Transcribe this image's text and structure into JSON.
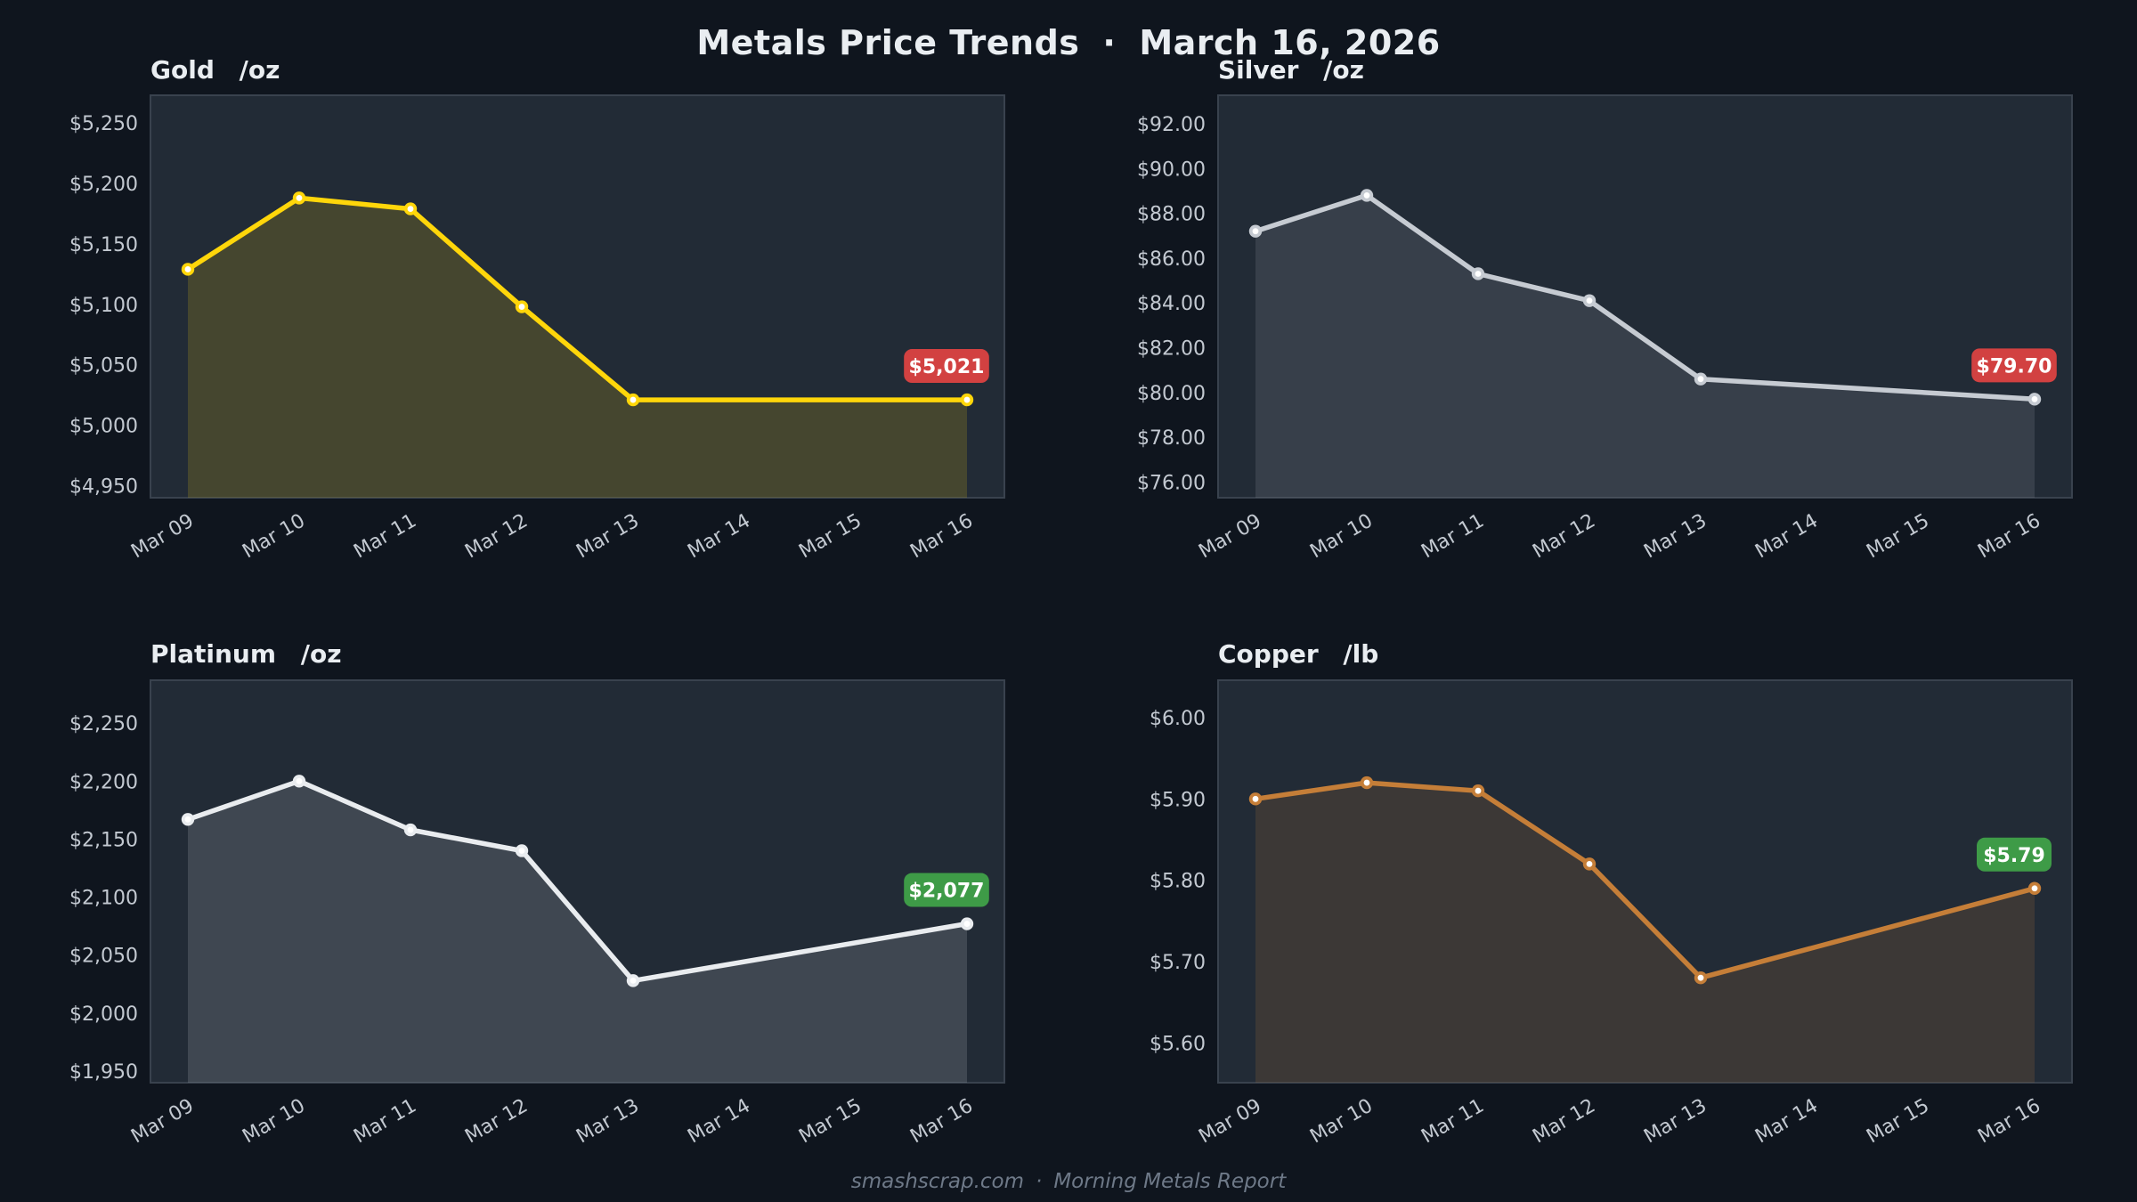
{
  "page": {
    "colors": {
      "background": "#0f151e",
      "panel_bg": "#222b36",
      "panel_border": "#39424e",
      "tick_label": "#c3c9d1",
      "title_text": "#e9edf1",
      "footer_text": "#6e7988",
      "badge_text": "#ffffff",
      "marker_center": "#ffffff"
    }
  },
  "header": {
    "title_left": "Metals Price Trends",
    "separator": "·",
    "title_right": "March 16, 2026"
  },
  "footer": {
    "site": "smashscrap.com",
    "separator": "·",
    "report": "Morning Metals Report"
  },
  "chart_data": [
    {
      "id": "gold",
      "type": "area",
      "title": "Gold",
      "unit": "/oz",
      "x_labels": [
        "Mar 09",
        "Mar 10",
        "Mar 11",
        "Mar 12",
        "Mar 13",
        "Mar 14",
        "Mar 15",
        "Mar 16"
      ],
      "points": [
        {
          "i": 0,
          "date": "Mar 09",
          "value": 5129
        },
        {
          "i": 1,
          "date": "Mar 10",
          "value": 5188
        },
        {
          "i": 2,
          "date": "Mar 11",
          "value": 5179
        },
        {
          "i": 3,
          "date": "Mar 12",
          "value": 5098
        },
        {
          "i": 4,
          "date": "Mar 13",
          "value": 5021
        },
        {
          "i": 7,
          "date": "Mar 16",
          "value": 5021
        }
      ],
      "note_weekend_gap": "no data Mar 14-15",
      "y_ticks": [
        {
          "value": 4950,
          "label": "$4,950"
        },
        {
          "value": 5000,
          "label": "$5,000"
        },
        {
          "value": 5050,
          "label": "$5,050"
        },
        {
          "value": 5100,
          "label": "$5,100"
        },
        {
          "value": 5150,
          "label": "$5,150"
        },
        {
          "value": 5200,
          "label": "$5,200"
        },
        {
          "value": 5250,
          "label": "$5,250"
        }
      ],
      "ylim": [
        4940,
        5273
      ],
      "line_color": "#ffd60a",
      "fill_color": "rgba(255,214,10,0.16)",
      "badge": {
        "label": "$5,021",
        "color": "#d24141"
      }
    },
    {
      "id": "silver",
      "type": "area",
      "title": "Silver",
      "unit": "/oz",
      "x_labels": [
        "Mar 09",
        "Mar 10",
        "Mar 11",
        "Mar 12",
        "Mar 13",
        "Mar 14",
        "Mar 15",
        "Mar 16"
      ],
      "points": [
        {
          "i": 0,
          "date": "Mar 09",
          "value": 87.2
        },
        {
          "i": 1,
          "date": "Mar 10",
          "value": 88.8
        },
        {
          "i": 2,
          "date": "Mar 11",
          "value": 85.3
        },
        {
          "i": 3,
          "date": "Mar 12",
          "value": 84.1
        },
        {
          "i": 4,
          "date": "Mar 13",
          "value": 80.6
        },
        {
          "i": 7,
          "date": "Mar 16",
          "value": 79.7
        }
      ],
      "note_weekend_gap": "no data Mar 14-15",
      "y_ticks": [
        {
          "value": 76,
          "label": "$76.00"
        },
        {
          "value": 78,
          "label": "$78.00"
        },
        {
          "value": 80,
          "label": "$80.00"
        },
        {
          "value": 82,
          "label": "$82.00"
        },
        {
          "value": 84,
          "label": "$84.00"
        },
        {
          "value": 86,
          "label": "$86.00"
        },
        {
          "value": 88,
          "label": "$88.00"
        },
        {
          "value": 90,
          "label": "$90.00"
        },
        {
          "value": 92,
          "label": "$92.00"
        }
      ],
      "ylim": [
        75.3,
        93.27
      ],
      "line_color": "#c6cbd2",
      "fill_color": "rgba(198,203,210,0.13)",
      "badge": {
        "label": "$79.70",
        "color": "#d24141"
      }
    },
    {
      "id": "platinum",
      "type": "area",
      "title": "Platinum",
      "unit": "/oz",
      "x_labels": [
        "Mar 09",
        "Mar 10",
        "Mar 11",
        "Mar 12",
        "Mar 13",
        "Mar 14",
        "Mar 15",
        "Mar 16"
      ],
      "points": [
        {
          "i": 0,
          "date": "Mar 09",
          "value": 2167
        },
        {
          "i": 1,
          "date": "Mar 10",
          "value": 2200
        },
        {
          "i": 2,
          "date": "Mar 11",
          "value": 2158
        },
        {
          "i": 3,
          "date": "Mar 12",
          "value": 2140
        },
        {
          "i": 4,
          "date": "Mar 13",
          "value": 2028
        },
        {
          "i": 7,
          "date": "Mar 16",
          "value": 2077
        }
      ],
      "note_weekend_gap": "no data Mar 14-15",
      "y_ticks": [
        {
          "value": 1950,
          "label": "$1,950"
        },
        {
          "value": 2000,
          "label": "$2,000"
        },
        {
          "value": 2050,
          "label": "$2,050"
        },
        {
          "value": 2100,
          "label": "$2,100"
        },
        {
          "value": 2150,
          "label": "$2,150"
        },
        {
          "value": 2200,
          "label": "$2,200"
        },
        {
          "value": 2250,
          "label": "$2,250"
        }
      ],
      "ylim": [
        1940,
        2287
      ],
      "line_color": "#e9ecef",
      "fill_color": "rgba(233,236,239,0.15)",
      "badge": {
        "label": "$2,077",
        "color": "#3e9b47"
      }
    },
    {
      "id": "copper",
      "type": "area",
      "title": "Copper",
      "unit": "/lb",
      "x_labels": [
        "Mar 09",
        "Mar 10",
        "Mar 11",
        "Mar 12",
        "Mar 13",
        "Mar 14",
        "Mar 15",
        "Mar 16"
      ],
      "points": [
        {
          "i": 0,
          "date": "Mar 09",
          "value": 5.9
        },
        {
          "i": 1,
          "date": "Mar 10",
          "value": 5.92
        },
        {
          "i": 2,
          "date": "Mar 11",
          "value": 5.91
        },
        {
          "i": 3,
          "date": "Mar 12",
          "value": 5.82
        },
        {
          "i": 4,
          "date": "Mar 13",
          "value": 5.68
        },
        {
          "i": 7,
          "date": "Mar 16",
          "value": 5.79
        }
      ],
      "note_weekend_gap": "no data Mar 14-15",
      "y_ticks": [
        {
          "value": 5.6,
          "label": "$5.60"
        },
        {
          "value": 5.7,
          "label": "$5.70"
        },
        {
          "value": 5.8,
          "label": "$5.80"
        },
        {
          "value": 5.9,
          "label": "$5.90"
        },
        {
          "value": 6.0,
          "label": "$6.00"
        }
      ],
      "ylim": [
        5.551,
        6.046
      ],
      "line_color": "#c57e38",
      "fill_color": "rgba(197,126,56,0.16)",
      "badge": {
        "label": "$5.79",
        "color": "#3e9b47"
      }
    }
  ]
}
